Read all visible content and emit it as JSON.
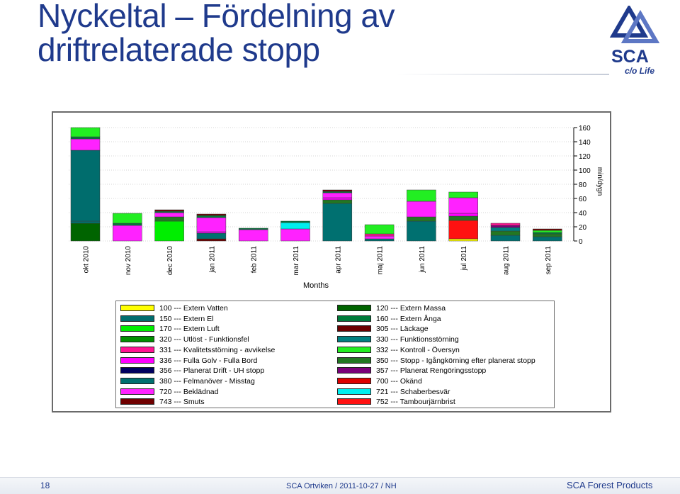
{
  "title": {
    "line1": "Nyckeltal – Fördelning av",
    "line2": "driftrelaterade stopp"
  },
  "logo": {
    "brand": "SCA",
    "tagline": "c/o Life"
  },
  "colors": {
    "c100": "#ffff00",
    "c120": "#006400",
    "c150": "#006d6d",
    "c160": "#007b3a",
    "c170": "#00ee00",
    "c305": "#6b0000",
    "c320": "#009000",
    "c330": "#008080",
    "c331": "#ff1493",
    "c332": "#22ee22",
    "c336": "#ff00ff",
    "c350": "#227722",
    "c356": "#000060",
    "c357": "#7a007a",
    "c380": "#007070",
    "c700": "#dd0000",
    "c720": "#ff22ff",
    "c721": "#00eeee",
    "c743": "#700000",
    "c752": "#ff1111",
    "title_color": "#1f3a8c"
  },
  "chart_data": {
    "type": "bar",
    "stacked": true,
    "title": "",
    "xlabel": "Months",
    "ylabel": "min/dygn",
    "ylim": [
      0,
      160
    ],
    "yticks": [
      "0",
      "20",
      "40",
      "60",
      "80",
      "100",
      "120",
      "140",
      "160"
    ],
    "categories": [
      "okt 2010",
      "nov 2010",
      "dec 2010",
      "jan 2011",
      "feb 2011",
      "mar 2011",
      "apr 2011",
      "maj 2011",
      "jun 2011",
      "jul 2011",
      "aug 2011",
      "sep 2011"
    ],
    "series": [
      {
        "name": "120 --- Extern Massa",
        "color_key": "c120",
        "values": [
          25,
          0,
          0,
          0,
          0,
          0,
          0,
          0,
          0,
          0,
          0,
          0
        ]
      },
      {
        "name": "100 --- Extern Vatten",
        "color_key": "c100",
        "values": [
          0,
          0,
          0,
          0,
          0,
          0,
          0,
          0,
          0,
          3,
          0,
          0
        ]
      },
      {
        "name": "752 --- Tambourjärnbrist",
        "color_key": "c752",
        "values": [
          0,
          0,
          0,
          0,
          0,
          0,
          0,
          0,
          0,
          26,
          0,
          0
        ]
      },
      {
        "name": "305 --- Läckage",
        "color_key": "c305",
        "values": [
          0,
          0,
          0,
          3,
          0,
          0,
          0,
          0,
          0,
          0,
          0,
          0
        ]
      },
      {
        "name": "380 --- Felmanöver - Misstag",
        "color_key": "c380",
        "values": [
          3,
          0,
          0,
          8,
          0,
          0,
          53,
          3,
          28,
          0,
          8,
          6
        ]
      },
      {
        "name": "170 --- Extern Luft",
        "color_key": "c170",
        "values": [
          0,
          0,
          28,
          0,
          0,
          0,
          0,
          0,
          0,
          0,
          0,
          0
        ]
      },
      {
        "name": "150 --- Extern El",
        "color_key": "c150",
        "values": [
          100,
          0,
          0,
          0,
          0,
          0,
          0,
          0,
          0,
          0,
          0,
          0
        ]
      },
      {
        "name": "350 --- Stopp - Igångkörning efter planerat stopp",
        "color_key": "c350",
        "values": [
          0,
          0,
          6,
          0,
          0,
          0,
          5,
          0,
          6,
          6,
          6,
          4
        ]
      },
      {
        "name": "330 --- Funktionsstörning",
        "color_key": "c330",
        "values": [
          0,
          0,
          0,
          0,
          0,
          0,
          0,
          0,
          0,
          0,
          5,
          0
        ]
      },
      {
        "name": "357 --- Planerat Rengöringsstopp",
        "color_key": "c357",
        "values": [
          0,
          0,
          0,
          0,
          0,
          0,
          0,
          0,
          0,
          0,
          3,
          0
        ]
      },
      {
        "name": "336 --- Fulla Golv - Fulla Bord",
        "color_key": "c336",
        "values": [
          0,
          0,
          0,
          2,
          0,
          0,
          3,
          0,
          0,
          4,
          0,
          0
        ]
      },
      {
        "name": "720 --- Beklädnad",
        "color_key": "c720",
        "values": [
          16,
          22,
          6,
          20,
          16,
          17,
          7,
          4,
          22,
          22,
          0,
          0
        ]
      },
      {
        "name": "331 --- Kvalitetsstörning - avvikelse",
        "color_key": "c331",
        "values": [
          0,
          0,
          0,
          0,
          0,
          0,
          0,
          3,
          0,
          0,
          3,
          0
        ]
      },
      {
        "name": "721 --- Schaberbesvär",
        "color_key": "c721",
        "values": [
          0,
          0,
          0,
          0,
          0,
          9,
          0,
          0,
          0,
          0,
          0,
          0
        ]
      },
      {
        "name": "160 --- Extern Ånga",
        "color_key": "c160",
        "values": [
          3,
          3,
          2,
          3,
          2,
          2,
          2,
          0,
          0,
          0,
          0,
          2
        ]
      },
      {
        "name": "332 --- Kontroll - Översyn",
        "color_key": "c332",
        "values": [
          13,
          14,
          0,
          0,
          0,
          0,
          0,
          13,
          16,
          8,
          0,
          3
        ]
      },
      {
        "name": "743 --- Smuts",
        "color_key": "c743",
        "values": [
          0,
          0,
          2,
          2,
          0,
          0,
          2,
          0,
          0,
          0,
          0,
          2
        ]
      }
    ],
    "legend_position": "bottom"
  },
  "legend": {
    "left": [
      {
        "label": "100 --- Extern Vatten",
        "color_key": "c100"
      },
      {
        "label": "150 --- Extern El",
        "color_key": "c150"
      },
      {
        "label": "170 --- Extern Luft",
        "color_key": "c170"
      },
      {
        "label": "320 --- Utlöst - Funktionsfel",
        "color_key": "c320"
      },
      {
        "label": "331 --- Kvalitetsstörning - avvikelse",
        "color_key": "c331"
      },
      {
        "label": "336 --- Fulla Golv - Fulla Bord",
        "color_key": "c336"
      },
      {
        "label": "356 --- Planerat Drift - UH stopp",
        "color_key": "c356"
      },
      {
        "label": "380 --- Felmanöver - Misstag",
        "color_key": "c380"
      },
      {
        "label": "720 --- Beklädnad",
        "color_key": "c720"
      },
      {
        "label": "743 --- Smuts",
        "color_key": "c743"
      }
    ],
    "right": [
      {
        "label": "120 --- Extern Massa",
        "color_key": "c120"
      },
      {
        "label": "160 --- Extern Ånga",
        "color_key": "c160"
      },
      {
        "label": "305 --- Läckage",
        "color_key": "c305"
      },
      {
        "label": "330 --- Funktionsstörning",
        "color_key": "c330"
      },
      {
        "label": "332 --- Kontroll - Översyn",
        "color_key": "c332"
      },
      {
        "label": "350 --- Stopp - Igångkörning efter planerat stopp",
        "color_key": "c350"
      },
      {
        "label": "357 --- Planerat Rengöringsstopp",
        "color_key": "c357"
      },
      {
        "label": "700 --- Okänd",
        "color_key": "c700"
      },
      {
        "label": "721 --- Schaberbesvär",
        "color_key": "c721"
      },
      {
        "label": "752 --- Tambourjärnbrist",
        "color_key": "c752"
      }
    ]
  },
  "footer": {
    "page_number": "18",
    "center": "SCA Ortviken / 2011-10-27 / NH",
    "right": "SCA Forest Products"
  }
}
